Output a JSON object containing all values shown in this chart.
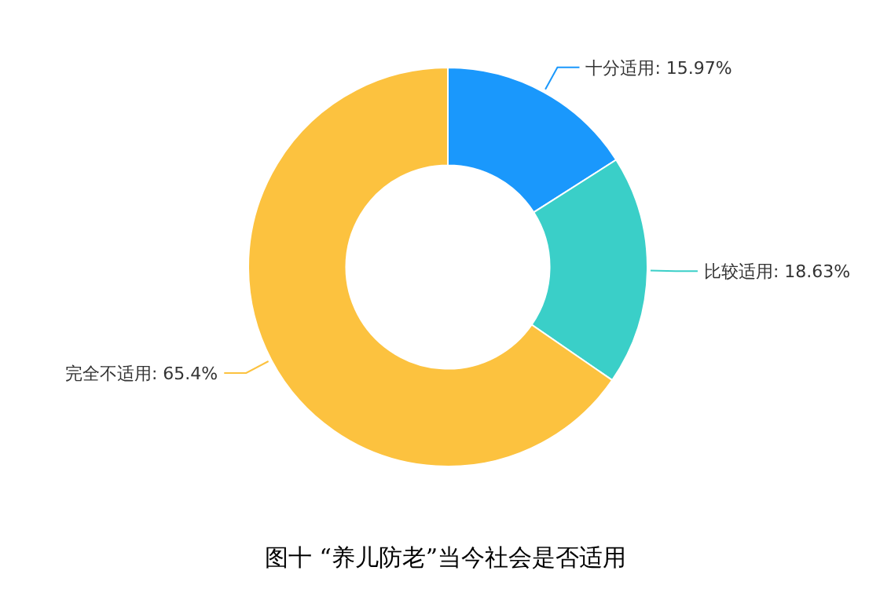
{
  "chart_data": {
    "type": "donut",
    "title": "图十 “养儿防老”当今社会是否适用",
    "categories": [
      "十分适用",
      "比较适用",
      "完全不适用"
    ],
    "values": [
      15.97,
      18.63,
      65.4
    ],
    "value_labels": [
      "15.97%",
      "18.63%",
      "65.4%"
    ],
    "colors": [
      "#1a98fc",
      "#3acfc8",
      "#fcc23f"
    ]
  }
}
